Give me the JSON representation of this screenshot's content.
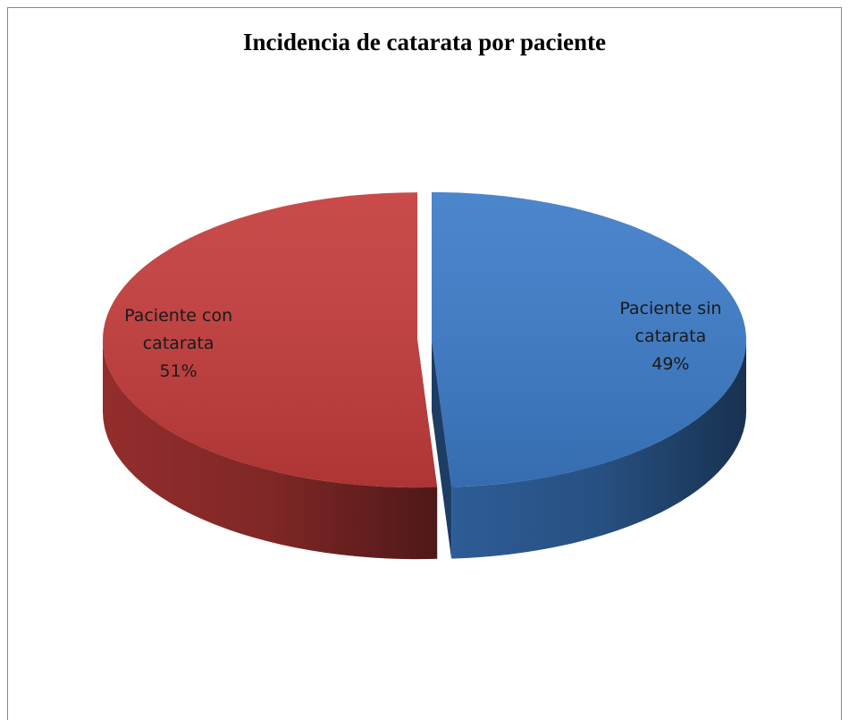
{
  "chart_data": {
    "type": "pie",
    "title": "Incidencia de catarata por paciente",
    "categories": [
      "Paciente sin catarata",
      "Paciente con catarata"
    ],
    "values": [
      49,
      51
    ],
    "value_labels": [
      "49%",
      "51%"
    ],
    "colors": [
      "#3c7bc8",
      "#c43c3b"
    ]
  }
}
